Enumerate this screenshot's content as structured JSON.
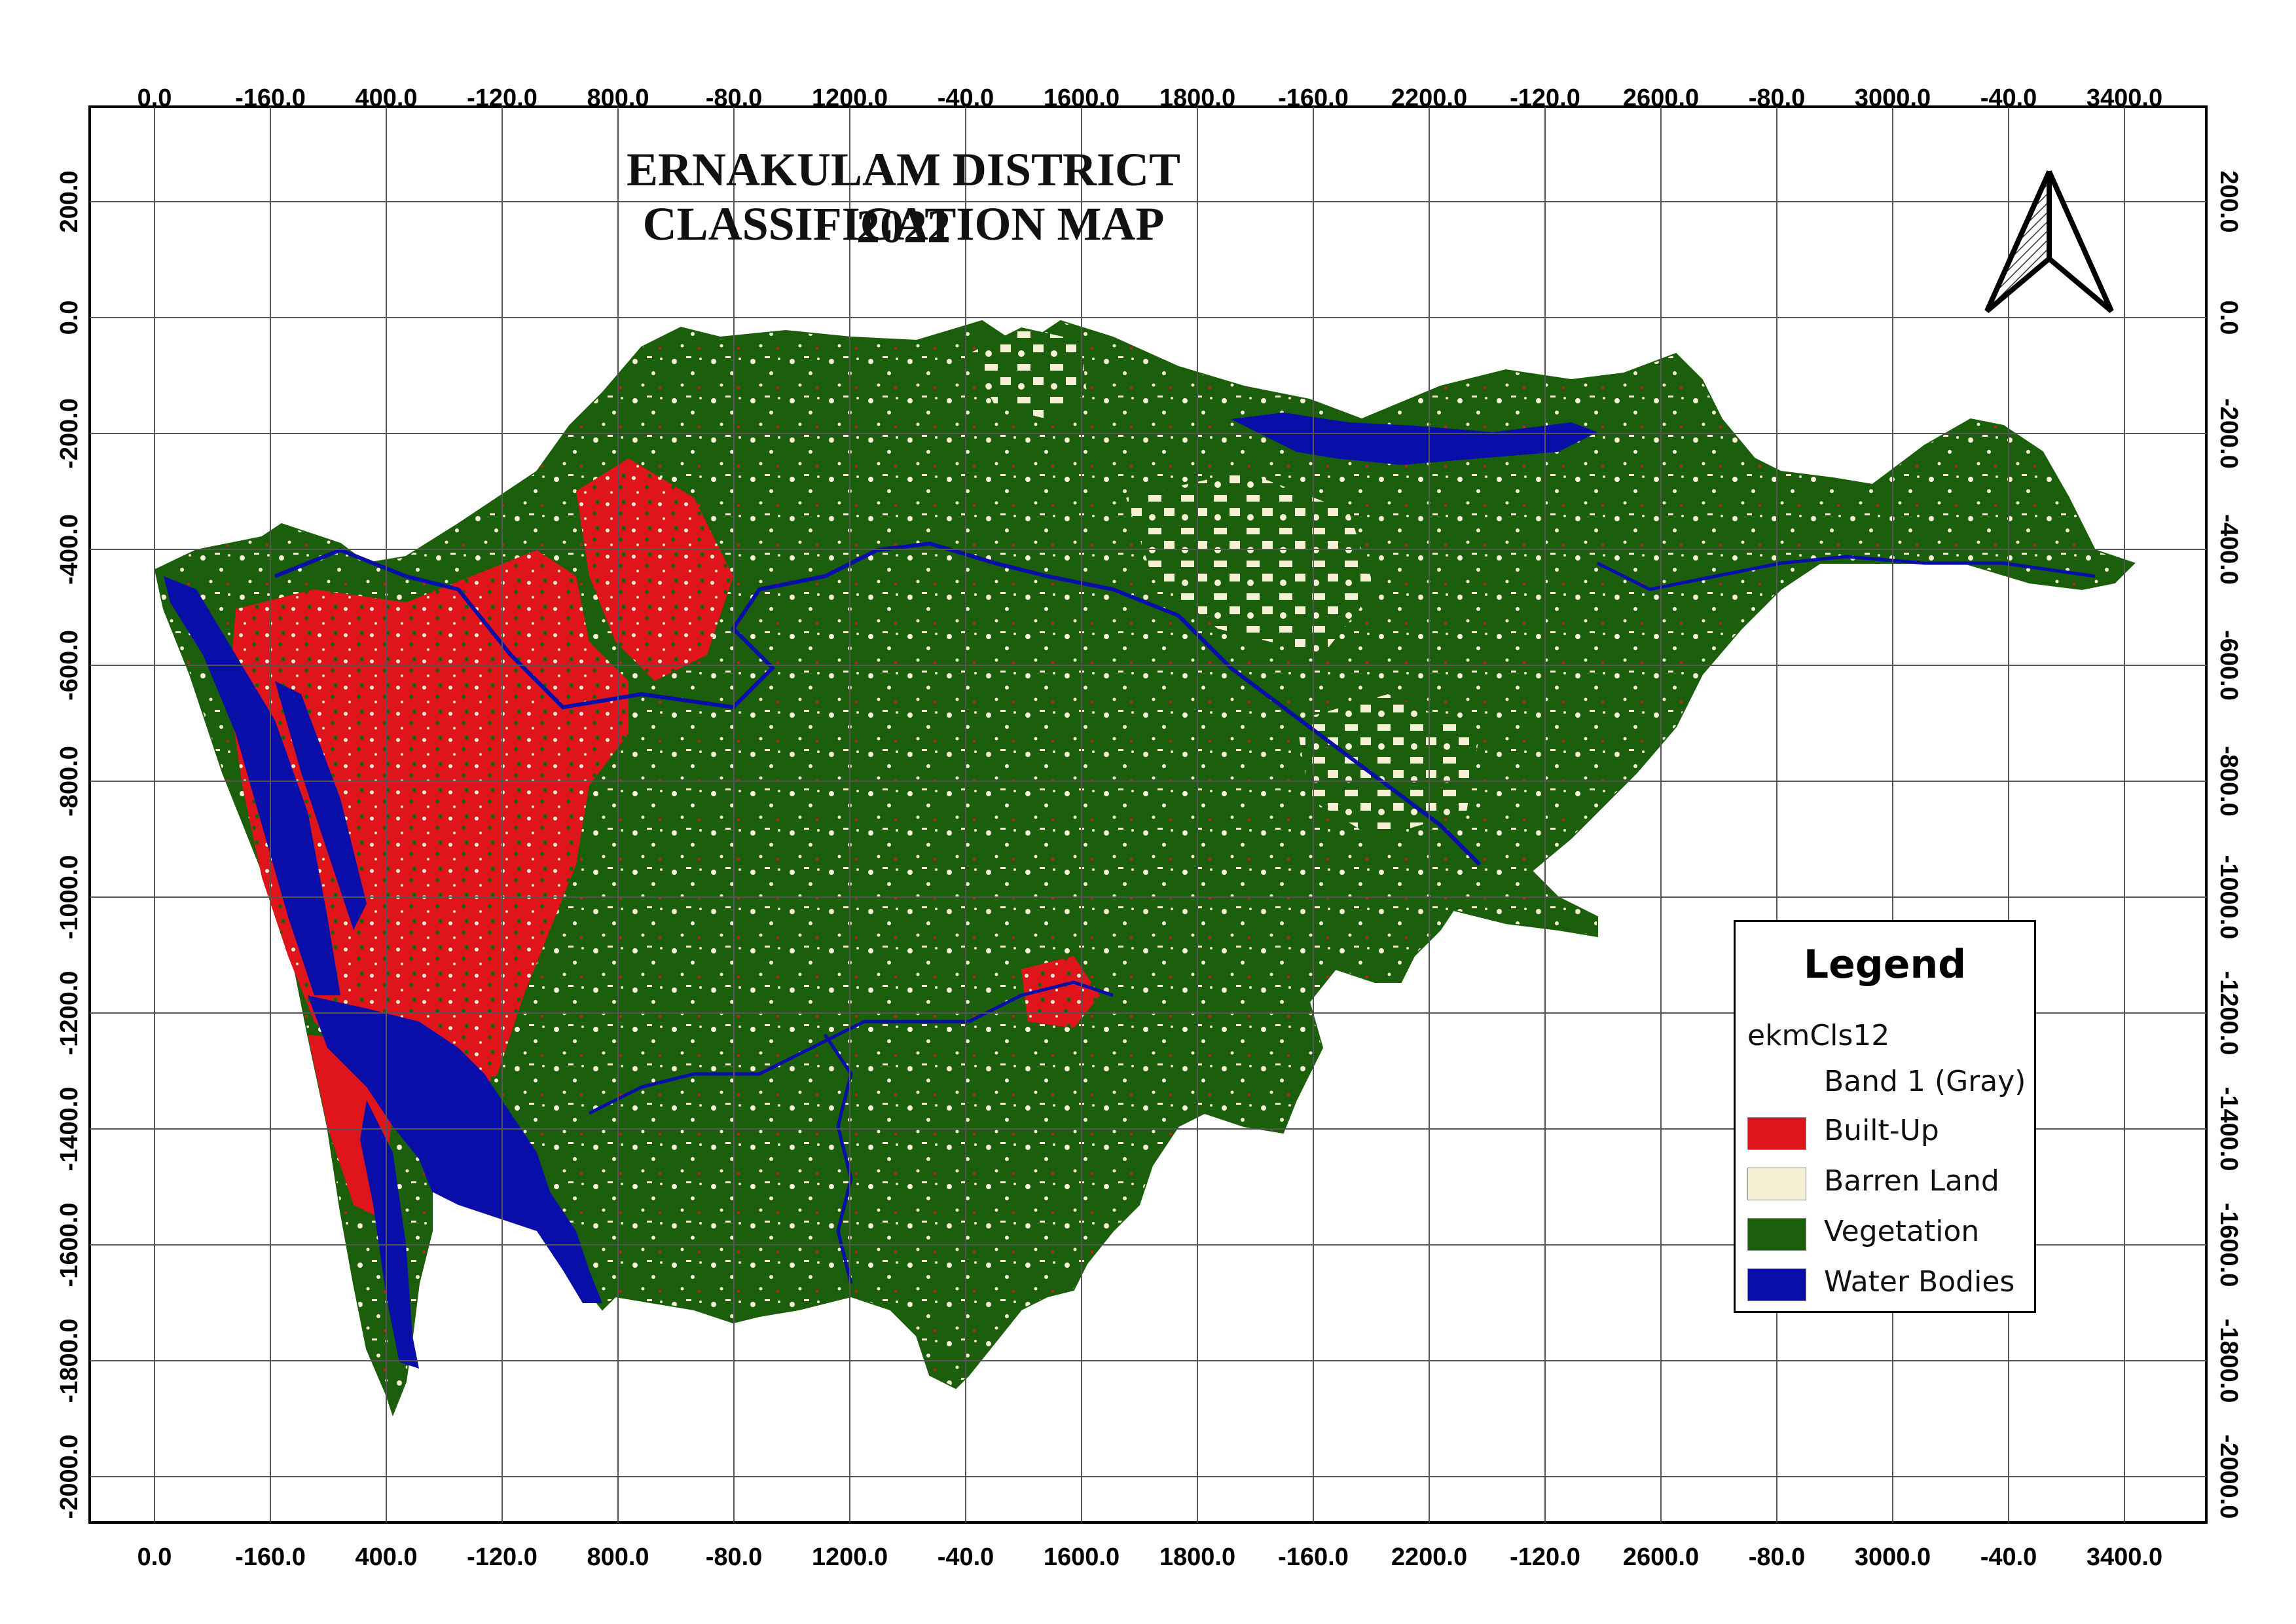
{
  "title": {
    "line1": "ERNAKULAM DISTRICT CLASSIFICATION MAP",
    "line2": "2022"
  },
  "axes": {
    "x_ticks": [
      "0.0",
      "-160.0",
      "400.0",
      "-120.0",
      "800.0",
      "-80.0",
      "1200.0",
      "-40.0",
      "1600.0",
      "1800.0",
      "-160.0",
      "2200.0",
      "-120.0",
      "2600.0",
      "-80.0",
      "3000.0",
      "-40.0",
      "3400.0"
    ],
    "y_ticks": [
      "200.0",
      "0.0",
      "-200.0",
      "-400.0",
      "-600.0",
      "-800.0",
      "-1000.0",
      "-1200.0",
      "-1400.0",
      "-1600.0",
      "-1800.0",
      "-2000.0"
    ]
  },
  "north_arrow": {
    "icon": "north-arrow-icon"
  },
  "legend": {
    "title": "Legend",
    "layer": "ekmCls12",
    "band": "Band 1 (Gray)",
    "items": [
      {
        "label": "Built-Up",
        "color": "#e0141b"
      },
      {
        "label": "Barren Land",
        "color": "#f6f1d5"
      },
      {
        "label": "Vegetation",
        "color": "#1b5e0b"
      },
      {
        "label": "Water Bodies",
        "color": "#0a0ea8"
      }
    ]
  },
  "colors": {
    "vegetation": "#1b5e0b",
    "builtup": "#e0141b",
    "barren": "#f6f1d5",
    "water": "#0a0ea8",
    "grid": "#555555"
  }
}
